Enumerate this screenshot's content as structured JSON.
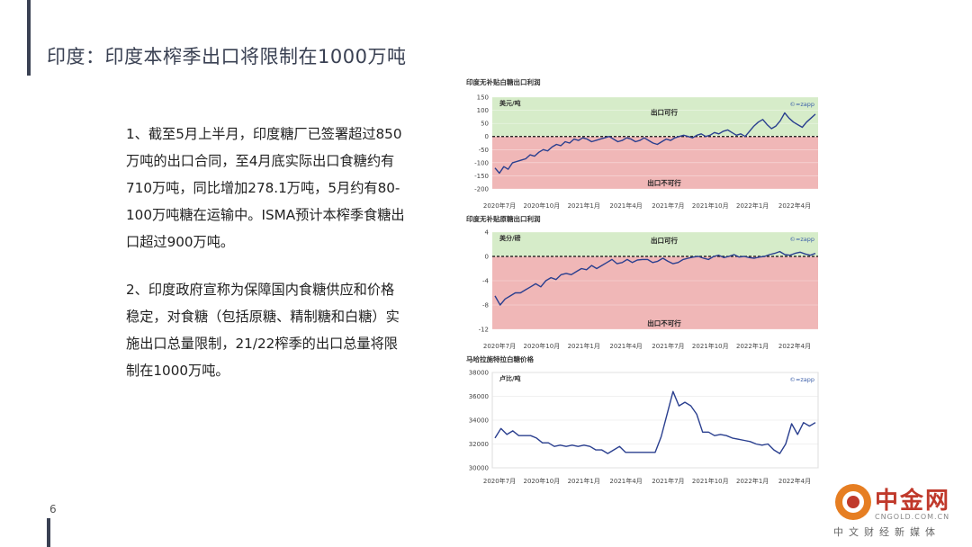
{
  "header": {
    "title": "印度：印度本榨季出口将限制在1000万吨"
  },
  "body": {
    "paragraphs": [
      "1、截至5月上半月，印度糖厂已签署超过850万吨的出口合同，至4月底实际出口食糖约有710万吨，同比增加278.1万吨，5月约有80-100万吨糖在运输中。ISMA预计本榨季食糖出口超过900万吨。",
      "2、印度政府宣称为保障国内食糖供应和价格稳定，对食糖（包括原糖、精制糖和白糖）实施出口总量限制，21/22榨季的出口总量将限制在1000万吨。"
    ]
  },
  "footer": {
    "page_number": "6"
  },
  "logo": {
    "name": "中金网",
    "domain": "CNGOLD.COM.CN",
    "tagline": "中文财经新媒体"
  },
  "chart_data": [
    {
      "type": "line",
      "title": "印度无补贴白糖出口利润",
      "ylabel": "美元/吨",
      "source": "©≈zapp",
      "ylim": [
        -200,
        150
      ],
      "yticks": [
        150,
        100,
        50,
        0,
        -50,
        -100,
        -150,
        -200
      ],
      "xticks": [
        "2020年7月",
        "2020年10月",
        "2021年1月",
        "2021年4月",
        "2021年7月",
        "2021年10月",
        "2022年1月",
        "2022年4月"
      ],
      "zones": {
        "above": "出口可行",
        "below": "出口不可行",
        "threshold": 0
      },
      "series": [
        {
          "values": [
            -120,
            -140,
            -115,
            -125,
            -100,
            -95,
            -90,
            -85,
            -70,
            -75,
            -60,
            -50,
            -55,
            -40,
            -30,
            -35,
            -20,
            -25,
            -10,
            -15,
            -5,
            -10,
            -20,
            -15,
            -10,
            -5,
            0,
            -10,
            -20,
            -15,
            -5,
            -10,
            -20,
            -15,
            -5,
            -15,
            -25,
            -30,
            -20,
            -10,
            -15,
            -5,
            0,
            5,
            0,
            -5,
            5,
            10,
            0,
            5,
            15,
            10,
            20,
            25,
            15,
            5,
            10,
            0,
            20,
            40,
            55,
            65,
            45,
            30,
            40,
            60,
            90,
            70,
            55,
            45,
            35,
            55,
            70,
            85
          ]
        }
      ]
    },
    {
      "type": "line",
      "title": "印度无补贴原糖出口利润",
      "ylabel": "美分/磅",
      "source": "©≈zapp",
      "ylim": [
        -12,
        4
      ],
      "yticks": [
        4,
        0,
        -4,
        -8,
        -12
      ],
      "xticks": [
        "2020年7月",
        "2020年10月",
        "2021年1月",
        "2021年4月",
        "2021年7月",
        "2021年10月",
        "2022年1月",
        "2022年4月"
      ],
      "zones": {
        "above": "出口可行",
        "below": "出口不可行",
        "threshold": 0
      },
      "series": [
        {
          "values": [
            -6.5,
            -8,
            -7,
            -6.5,
            -6,
            -6,
            -5.5,
            -5,
            -4.5,
            -5,
            -4,
            -3.5,
            -3.8,
            -3,
            -2.8,
            -3,
            -2.5,
            -2,
            -2.2,
            -1.5,
            -2,
            -1.5,
            -1,
            -0.5,
            -1.2,
            -1,
            -0.5,
            -1,
            -0.6,
            -0.5,
            -0.5,
            -1,
            -0.8,
            -0.3,
            -0.8,
            -1.2,
            -1,
            -0.5,
            -0.3,
            -0.1,
            0,
            -0.3,
            -0.5,
            0,
            0.2,
            -0.2,
            0,
            0.3,
            -0.1,
            0,
            -0.2,
            -0.3,
            -0.1,
            0,
            0.3,
            0.5,
            0.8,
            0.3,
            0.2,
            0.5,
            0.7,
            0.4,
            0.2,
            0.5
          ]
        }
      ]
    },
    {
      "type": "line",
      "title": "马哈拉施特拉白糖价格",
      "ylabel": "卢比/吨",
      "source": "©≈zapp",
      "ylim": [
        30000,
        38000
      ],
      "yticks": [
        38000,
        36000,
        34000,
        32000,
        30000
      ],
      "xticks": [
        "2020年7月",
        "2020年10月",
        "2021年1月",
        "2021年4月",
        "2021年7月",
        "2021年10月",
        "2022年1月",
        "2022年4月"
      ],
      "series": [
        {
          "values": [
            32500,
            33300,
            32800,
            33100,
            32700,
            32700,
            32700,
            32500,
            32100,
            32100,
            31800,
            31900,
            31800,
            31900,
            31800,
            31900,
            31800,
            31500,
            31500,
            31200,
            31500,
            31800,
            31300,
            31300,
            31300,
            31300,
            31300,
            31300,
            32600,
            34500,
            36400,
            35200,
            35500,
            35200,
            34500,
            33000,
            33000,
            32700,
            32800,
            32700,
            32500,
            32400,
            32300,
            32200,
            32000,
            31900,
            32000,
            31500,
            31200,
            32000,
            33700,
            32800,
            33800,
            33500,
            33800
          ]
        }
      ]
    }
  ]
}
